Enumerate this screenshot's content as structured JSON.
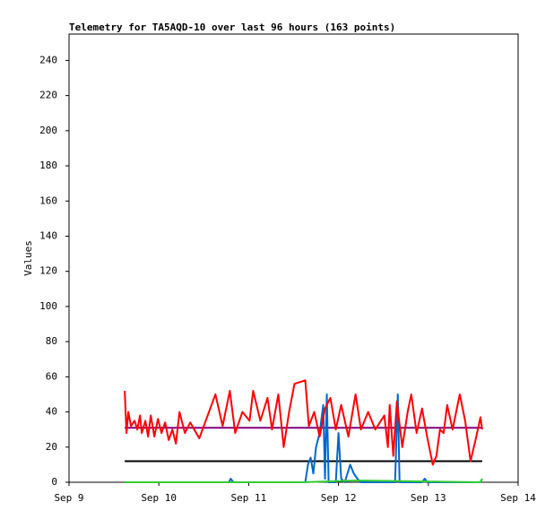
{
  "chart_data": {
    "type": "line",
    "title": "Telemetry for TA5AQD-10 over last 96 hours (163 points)",
    "y_label": "Values",
    "xlim": [
      0,
      5
    ],
    "xticks": [
      {
        "value": 0,
        "label": "Sep 9"
      },
      {
        "value": 1,
        "label": "Sep 10"
      },
      {
        "value": 2,
        "label": "Sep 11"
      },
      {
        "value": 3,
        "label": "Sep 12"
      },
      {
        "value": 4,
        "label": "Sep 13"
      },
      {
        "value": 5,
        "label": "Sep 14"
      }
    ],
    "ylim": [
      0,
      255
    ],
    "yticks": [
      0,
      20,
      40,
      60,
      80,
      100,
      120,
      140,
      160,
      180,
      200,
      220,
      240
    ],
    "series": [
      {
        "color": "#000000",
        "x": [
          0.62,
          4.6
        ],
        "values": [
          12,
          12
        ]
      },
      {
        "color": "#800080",
        "x": [
          0.62,
          4.6
        ],
        "values": [
          31,
          31
        ]
      },
      {
        "color": "#0066cc",
        "x": [
          0.62,
          1.78,
          1.8,
          1.83,
          2.63,
          2.66,
          2.69,
          2.72,
          2.75,
          2.79,
          2.83,
          2.85,
          2.87,
          2.89,
          2.97,
          3.0,
          3.03,
          3.07,
          3.13,
          3.17,
          3.21,
          3.25,
          3.63,
          3.66,
          3.68,
          3.93,
          3.96,
          3.99,
          4.58,
          4.6
        ],
        "values": [
          0,
          0,
          2,
          0,
          0,
          10,
          14,
          5,
          20,
          28,
          44,
          2,
          50,
          0,
          0,
          28,
          2,
          0,
          10,
          5,
          2,
          0,
          0,
          50,
          0,
          0,
          2,
          0,
          0,
          2
        ]
      },
      {
        "color": "#33cc33",
        "x": [
          0.62,
          2.6,
          3.2,
          4.58,
          4.6
        ],
        "values": [
          0,
          0,
          1,
          0,
          2
        ]
      },
      {
        "color": "#ff0000",
        "x": [
          0.62,
          0.64,
          0.66,
          0.69,
          0.73,
          0.76,
          0.79,
          0.81,
          0.85,
          0.88,
          0.91,
          0.95,
          0.99,
          1.03,
          1.07,
          1.11,
          1.15,
          1.19,
          1.23,
          1.29,
          1.35,
          1.45,
          1.63,
          1.71,
          1.79,
          1.85,
          1.93,
          2.01,
          2.05,
          2.13,
          2.21,
          2.26,
          2.33,
          2.39,
          2.45,
          2.51,
          2.63,
          2.67,
          2.73,
          2.79,
          2.85,
          2.91,
          2.97,
          3.03,
          3.11,
          3.19,
          3.25,
          3.33,
          3.41,
          3.51,
          3.55,
          3.57,
          3.61,
          3.65,
          3.71,
          3.77,
          3.81,
          3.87,
          3.93,
          3.99,
          4.05,
          4.09,
          4.13,
          4.17,
          4.21,
          4.27,
          4.35,
          4.41,
          4.47,
          4.53,
          4.58,
          4.6
        ],
        "values": [
          52,
          28,
          40,
          32,
          35,
          30,
          38,
          28,
          35,
          26,
          38,
          26,
          36,
          28,
          34,
          24,
          30,
          22,
          40,
          28,
          34,
          25,
          50,
          32,
          52,
          28,
          40,
          35,
          52,
          35,
          48,
          30,
          50,
          20,
          40,
          56,
          58,
          32,
          40,
          26,
          42,
          48,
          30,
          44,
          26,
          50,
          30,
          40,
          30,
          38,
          20,
          44,
          15,
          46,
          20,
          40,
          50,
          28,
          42,
          25,
          10,
          15,
          30,
          28,
          44,
          30,
          50,
          35,
          12,
          25,
          37,
          30
        ]
      }
    ]
  }
}
